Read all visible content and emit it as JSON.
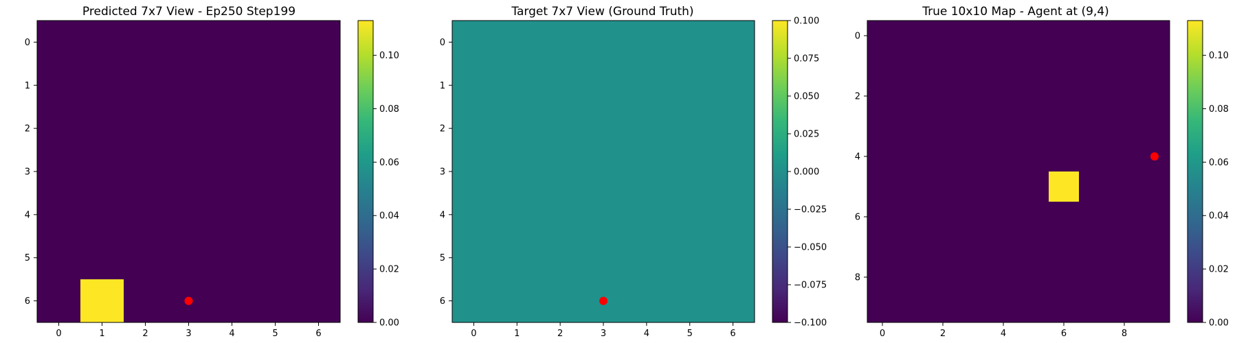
{
  "figure": {
    "background": "#ffffff"
  },
  "chart_data": [
    {
      "type": "heatmap",
      "title": "Predicted 7x7 View - Ep250 Step199",
      "xlabel": "",
      "ylabel": "",
      "grid": false,
      "colormap": "viridis",
      "rows": 7,
      "cols": 7,
      "x_ticks": [
        0,
        1,
        2,
        3,
        4,
        5,
        6
      ],
      "y_ticks": [
        0,
        1,
        2,
        3,
        4,
        5,
        6
      ],
      "background_value": 0.0,
      "background_color": "#440154",
      "highlight_cells": [
        {
          "row": 6,
          "col": 1,
          "value": 0.113,
          "color": "#fde725"
        }
      ],
      "agent_marker": {
        "row": 6,
        "col": 3,
        "color": "#ff0000"
      },
      "colorbar": {
        "range": [
          0.0,
          0.113
        ],
        "ticks": [
          "0.00",
          "0.02",
          "0.04",
          "0.06",
          "0.08",
          "0.10"
        ],
        "tick_values": [
          0.0,
          0.02,
          0.04,
          0.06,
          0.08,
          0.1
        ]
      }
    },
    {
      "type": "heatmap",
      "title": "Target 7x7 View (Ground Truth)",
      "xlabel": "",
      "ylabel": "",
      "grid": false,
      "colormap": "viridis",
      "rows": 7,
      "cols": 7,
      "x_ticks": [
        0,
        1,
        2,
        3,
        4,
        5,
        6
      ],
      "y_ticks": [
        0,
        1,
        2,
        3,
        4,
        5,
        6
      ],
      "background_value": 0.0,
      "background_color": "#21918c",
      "highlight_cells": [],
      "agent_marker": {
        "row": 6,
        "col": 3,
        "color": "#ff0000"
      },
      "colorbar": {
        "range": [
          -0.1,
          0.1
        ],
        "ticks": [
          "0.100",
          "0.075",
          "0.050",
          "0.025",
          "0.000",
          "−0.025",
          "−0.050",
          "−0.075",
          "−0.100"
        ],
        "tick_values": [
          0.1,
          0.075,
          0.05,
          0.025,
          0.0,
          -0.025,
          -0.05,
          -0.075,
          -0.1
        ]
      }
    },
    {
      "type": "heatmap",
      "title": "True 10x10 Map - Agent at (9,4)",
      "xlabel": "",
      "ylabel": "",
      "grid": false,
      "colormap": "viridis",
      "rows": 10,
      "cols": 10,
      "x_ticks": [
        0,
        2,
        4,
        6,
        8
      ],
      "y_ticks": [
        0,
        2,
        4,
        6,
        8
      ],
      "background_value": 0.0,
      "background_color": "#440154",
      "highlight_cells": [
        {
          "row": 5,
          "col": 6,
          "value": 0.113,
          "color": "#fde725"
        }
      ],
      "agent_marker": {
        "row": 4,
        "col": 9,
        "color": "#ff0000"
      },
      "colorbar": {
        "range": [
          0.0,
          0.113
        ],
        "ticks": [
          "0.00",
          "0.02",
          "0.04",
          "0.06",
          "0.08",
          "0.10"
        ],
        "tick_values": [
          0.0,
          0.02,
          0.04,
          0.06,
          0.08,
          0.1
        ]
      }
    }
  ]
}
